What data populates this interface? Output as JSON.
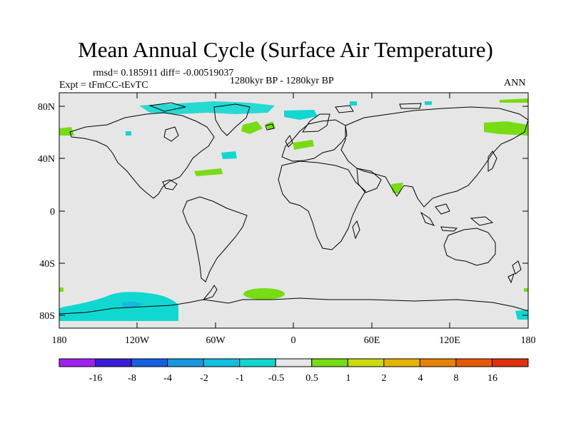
{
  "title": "Mean Annual Cycle (Surface Air Temperature)",
  "stats": "rmsd= 0.185911 diff= -0.00519037",
  "experiment": "Expt = tFmCC-tEvTC",
  "period": "1280kyr BP - 1280kyr BP",
  "season": "ANN",
  "map": {
    "lat_ticks": [
      "80N",
      "40N",
      "0",
      "40S",
      "80S"
    ],
    "lon_ticks": [
      "180",
      "120W",
      "60W",
      "0",
      "60E",
      "120E",
      "180"
    ],
    "background_color": "#e6e6e6"
  },
  "colorbar": {
    "labels": [
      "-16",
      "-8",
      "-4",
      "-2",
      "-1",
      "-0.5",
      "0.5",
      "1",
      "2",
      "4",
      "8",
      "16"
    ],
    "colors": [
      "#a020f0",
      "#3a1cd8",
      "#1460e0",
      "#1898e0",
      "#10c0e0",
      "#10d8d0",
      "#e6e6e6",
      "#78dc14",
      "#c8dc10",
      "#e6b400",
      "#e68200",
      "#e65a00",
      "#e03010"
    ]
  }
}
